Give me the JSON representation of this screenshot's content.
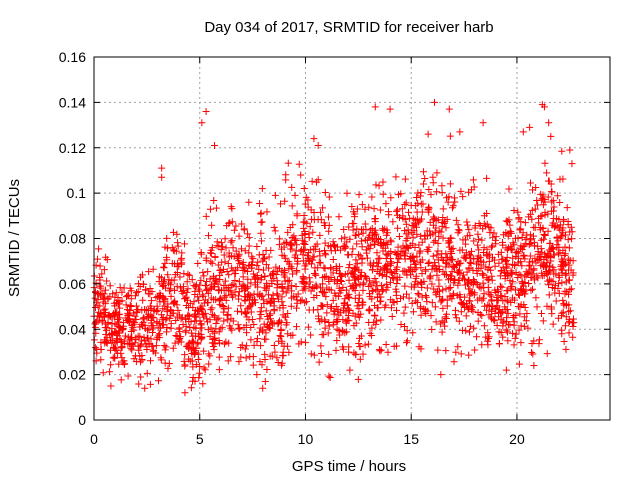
{
  "chart_data": {
    "type": "scatter",
    "title": "Day 034 of 2017, SRMTID for receiver harb",
    "xlabel": "GPS time / hours",
    "ylabel": "SRMTID / TECUs",
    "xlim": [
      0,
      24.4
    ],
    "ylim": [
      0,
      0.16
    ],
    "xticks": [
      0,
      5,
      10,
      15,
      20
    ],
    "xtick_labels": [
      "0",
      "5",
      "10",
      "15",
      "20"
    ],
    "yticks": [
      0,
      0.02,
      0.04,
      0.06,
      0.08,
      0.1,
      0.12,
      0.14,
      0.16
    ],
    "ytick_labels": [
      "0",
      "0.02",
      "0.04",
      "0.06",
      "0.08",
      "0.1",
      "0.12",
      "0.14",
      "0.16"
    ],
    "grid": true,
    "marker": "+",
    "color": "#ff0000",
    "trend": [
      {
        "x": 0.0,
        "mean": 0.052,
        "spread": 0.012
      },
      {
        "x": 1.0,
        "mean": 0.04,
        "spread": 0.01
      },
      {
        "x": 2.0,
        "mean": 0.04,
        "spread": 0.01
      },
      {
        "x": 3.0,
        "mean": 0.045,
        "spread": 0.013
      },
      {
        "x": 4.0,
        "mean": 0.055,
        "spread": 0.014
      },
      {
        "x": 4.6,
        "mean": 0.035,
        "spread": 0.012
      },
      {
        "x": 5.5,
        "mean": 0.058,
        "spread": 0.016
      },
      {
        "x": 7.0,
        "mean": 0.06,
        "spread": 0.016
      },
      {
        "x": 8.5,
        "mean": 0.055,
        "spread": 0.018
      },
      {
        "x": 10.0,
        "mean": 0.072,
        "spread": 0.018
      },
      {
        "x": 11.5,
        "mean": 0.055,
        "spread": 0.017
      },
      {
        "x": 13.0,
        "mean": 0.065,
        "spread": 0.018
      },
      {
        "x": 14.5,
        "mean": 0.072,
        "spread": 0.018
      },
      {
        "x": 16.0,
        "mean": 0.075,
        "spread": 0.018
      },
      {
        "x": 17.5,
        "mean": 0.068,
        "spread": 0.018
      },
      {
        "x": 19.0,
        "mean": 0.06,
        "spread": 0.016
      },
      {
        "x": 20.5,
        "mean": 0.068,
        "spread": 0.018
      },
      {
        "x": 21.5,
        "mean": 0.08,
        "spread": 0.02
      },
      {
        "x": 22.6,
        "mean": 0.058,
        "spread": 0.016
      }
    ],
    "point_count": 2600,
    "x_range": [
      0,
      22.7
    ],
    "notable_points": [
      {
        "x": 4.3,
        "y": 0.012
      },
      {
        "x": 5.1,
        "y": 0.131
      },
      {
        "x": 5.3,
        "y": 0.136
      },
      {
        "x": 5.7,
        "y": 0.121
      },
      {
        "x": 3.2,
        "y": 0.111
      },
      {
        "x": 3.2,
        "y": 0.107
      },
      {
        "x": 13.3,
        "y": 0.138
      },
      {
        "x": 14.0,
        "y": 0.137
      },
      {
        "x": 16.1,
        "y": 0.14
      },
      {
        "x": 16.8,
        "y": 0.137
      },
      {
        "x": 18.4,
        "y": 0.131
      },
      {
        "x": 21.2,
        "y": 0.139
      },
      {
        "x": 21.3,
        "y": 0.138
      },
      {
        "x": 21.5,
        "y": 0.131
      },
      {
        "x": 20.3,
        "y": 0.127
      },
      {
        "x": 20.6,
        "y": 0.129
      },
      {
        "x": 21.6,
        "y": 0.125
      },
      {
        "x": 10.6,
        "y": 0.121
      },
      {
        "x": 10.4,
        "y": 0.124
      },
      {
        "x": 15.8,
        "y": 0.126
      },
      {
        "x": 17.3,
        "y": 0.127
      },
      {
        "x": 22.5,
        "y": 0.119
      },
      {
        "x": 22.6,
        "y": 0.113
      },
      {
        "x": 7.7,
        "y": 0.02
      },
      {
        "x": 8.9,
        "y": 0.025
      },
      {
        "x": 12.1,
        "y": 0.022
      },
      {
        "x": 16.4,
        "y": 0.02
      },
      {
        "x": 19.5,
        "y": 0.022
      },
      {
        "x": 20.8,
        "y": 0.024
      },
      {
        "x": 0.8,
        "y": 0.015
      },
      {
        "x": 2.4,
        "y": 0.014
      }
    ]
  }
}
